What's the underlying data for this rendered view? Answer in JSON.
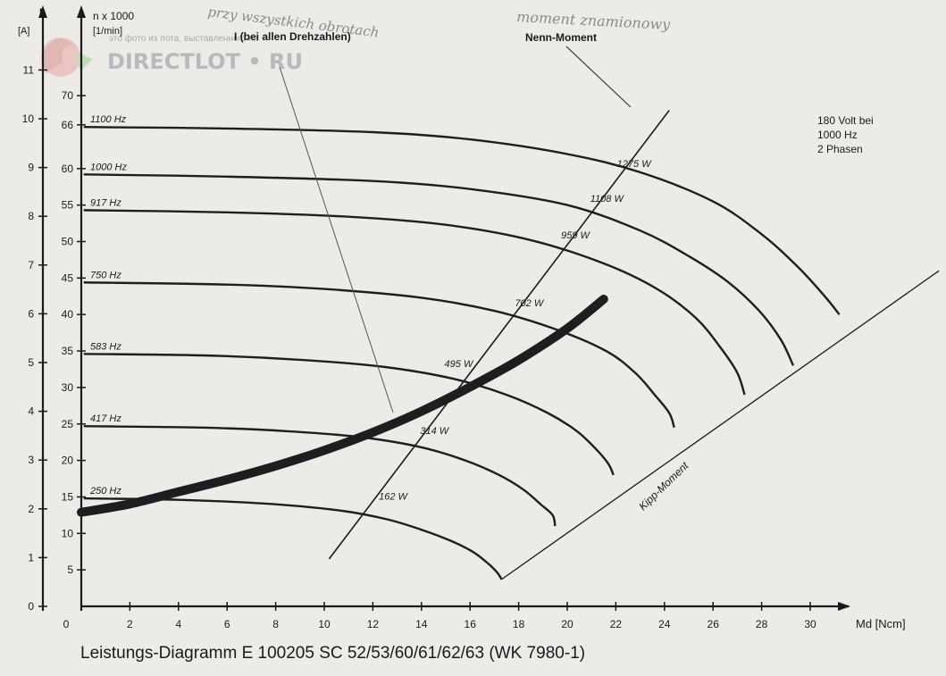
{
  "watermark": {
    "brand": "DIRECTLOT • RU",
    "caption": "это фото из лота, выставленного на"
  },
  "notes": {
    "top_left": "przy wszystkich obrotach",
    "top_right": "moment znamionowy"
  },
  "chart_data": {
    "type": "line",
    "title": "Leistungs-Diagramm E 100205 SC 52/53/60/61/62/63 (WK 7980-1)",
    "xlabel": "Md [Ncm]",
    "xlim": [
      0,
      32
    ],
    "x_ticks": [
      0,
      2,
      4,
      6,
      8,
      10,
      12,
      14,
      16,
      18,
      20,
      22,
      24,
      26,
      28,
      30
    ],
    "y_axes": {
      "current": {
        "label_top": "I",
        "label_unit": "[A]",
        "ylim": [
          0,
          11
        ],
        "ticks": [
          0,
          1,
          2,
          3,
          4,
          5,
          6,
          7,
          8,
          9,
          10,
          11
        ]
      },
      "speed": {
        "label_top": "n x 1000",
        "label_unit": "[1/min]",
        "ylim": [
          0,
          70
        ],
        "ticks": [
          5,
          10,
          15,
          20,
          25,
          30,
          35,
          40,
          45,
          50,
          55,
          60,
          66,
          70
        ]
      }
    },
    "info": [
      "180 Volt bei",
      "1000 Hz",
      "2 Phasen"
    ],
    "current_label": "I (bei allen Drehzahlen)",
    "rated_label": "Nenn-Moment",
    "breakdown_label": "Kipp-Moment",
    "series": [
      {
        "name": "1100 Hz",
        "x": [
          0.1,
          6,
          12,
          16,
          20,
          23,
          26,
          28,
          29.5,
          30.6,
          31.2
        ],
        "y": [
          65.7,
          65.5,
          65,
          64,
          62,
          59.5,
          55.5,
          51,
          46.5,
          42.5,
          40
        ]
      },
      {
        "name": "1000 Hz",
        "x": [
          0.1,
          6,
          12,
          16,
          20,
          23,
          25,
          26.6,
          27.9,
          28.8,
          29.3
        ],
        "y": [
          59.2,
          58.9,
          58.3,
          57.2,
          55,
          51.5,
          48,
          44.5,
          40.5,
          36.5,
          33
        ]
      },
      {
        "name": "917 Hz",
        "x": [
          0.1,
          6,
          11,
          15,
          18.5,
          21.5,
          23.7,
          25.3,
          26.3,
          27,
          27.3
        ],
        "y": [
          54.3,
          54,
          53.4,
          52.3,
          50.2,
          47,
          43.5,
          39.5,
          35.5,
          32,
          29
        ]
      },
      {
        "name": "750 Hz",
        "x": [
          0.1,
          6,
          10,
          14,
          17,
          19.5,
          21.6,
          22.8,
          23.6,
          24.2,
          24.4
        ],
        "y": [
          44.4,
          44.1,
          43.5,
          42.3,
          40.5,
          38,
          35,
          32,
          29,
          26.5,
          24.5
        ]
      },
      {
        "name": "583 Hz",
        "x": [
          0.1,
          5,
          9,
          12.5,
          15.3,
          17.5,
          19.2,
          20.4,
          21.2,
          21.7,
          21.9
        ],
        "y": [
          34.6,
          34.4,
          33.8,
          32.8,
          31.2,
          29,
          26.5,
          24,
          21.5,
          19.5,
          18
        ]
      },
      {
        "name": "417 Hz",
        "x": [
          0.1,
          5,
          8.5,
          11.5,
          14,
          15.8,
          17.2,
          18.2,
          18.9,
          19.4,
          19.5
        ],
        "y": [
          24.7,
          24.5,
          24,
          23.2,
          21.8,
          20,
          18,
          16,
          14,
          12.5,
          11
        ]
      },
      {
        "name": "250 Hz",
        "x": [
          0.1,
          4,
          7.5,
          10.5,
          12.5,
          14,
          15.2,
          16.1,
          16.7,
          17.1,
          17.3
        ],
        "y": [
          14.8,
          14.6,
          14.1,
          13.2,
          12,
          10.5,
          9,
          7.5,
          6,
          4.7,
          3.7
        ]
      }
    ],
    "rated_line": {
      "x": [
        10.2,
        24.2
      ],
      "y": [
        6.5,
        68
      ]
    },
    "breakdown_line": {
      "x": [
        17.3,
        35.3
      ],
      "y": [
        3.7,
        46
      ]
    },
    "current_curve": {
      "name": "I",
      "x": [
        0,
        2,
        4,
        6,
        8,
        10,
        12,
        14,
        16,
        18,
        20,
        21.5
      ],
      "y": [
        1.93,
        2.1,
        2.35,
        2.6,
        2.88,
        3.2,
        3.57,
        4.0,
        4.5,
        5.05,
        5.7,
        6.3
      ]
    },
    "rated_points": [
      {
        "label": "162 W",
        "x": 12.1,
        "y": 15.0
      },
      {
        "label": "314 W",
        "x": 13.8,
        "y": 24.0
      },
      {
        "label": "495 W",
        "x": 14.8,
        "y": 33.2
      },
      {
        "label": "702 W",
        "x": 17.7,
        "y": 41.5
      },
      {
        "label": "959 W",
        "x": 19.6,
        "y": 50.8
      },
      {
        "label": "1108 W",
        "x": 20.8,
        "y": 55.8
      },
      {
        "label": "1275 W",
        "x": 21.9,
        "y": 60.6
      }
    ]
  }
}
